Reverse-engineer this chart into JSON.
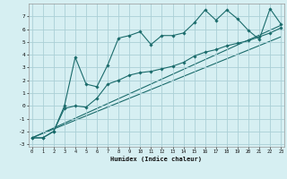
{
  "xlabel": "Humidex (Indice chaleur)",
  "bg_color": "#d6eff2",
  "grid_color": "#aacfd6",
  "line_color": "#1a6b6b",
  "x_ticks": [
    0,
    1,
    2,
    3,
    4,
    5,
    6,
    7,
    8,
    9,
    10,
    11,
    12,
    13,
    14,
    15,
    16,
    17,
    18,
    19,
    20,
    21,
    22,
    23
  ],
  "y_ticks": [
    -3,
    -2,
    -1,
    0,
    1,
    2,
    3,
    4,
    5,
    6,
    7
  ],
  "ylim": [
    -3.2,
    8.0
  ],
  "xlim": [
    -0.3,
    23.3
  ],
  "series1_x": [
    0,
    1,
    2,
    3,
    4,
    5,
    6,
    7,
    8,
    9,
    10,
    11,
    12,
    13,
    14,
    15,
    16,
    17,
    18,
    19,
    20,
    21,
    22,
    23
  ],
  "series1_y": [
    -2.5,
    -2.5,
    -2.0,
    0.0,
    3.8,
    1.7,
    1.5,
    3.2,
    5.3,
    5.5,
    5.8,
    4.8,
    5.5,
    5.5,
    5.7,
    6.5,
    7.5,
    6.7,
    7.5,
    6.8,
    5.9,
    5.2,
    7.6,
    6.4
  ],
  "series2_x": [
    0,
    1,
    2,
    3,
    4,
    5,
    6,
    7,
    8,
    9,
    10,
    11,
    12,
    13,
    14,
    15,
    16,
    17,
    18,
    19,
    20,
    21,
    22,
    23
  ],
  "series2_y": [
    -2.5,
    -2.5,
    -2.0,
    -0.2,
    0.0,
    -0.1,
    0.6,
    1.7,
    2.0,
    2.4,
    2.6,
    2.7,
    2.9,
    3.1,
    3.4,
    3.9,
    4.2,
    4.4,
    4.7,
    4.9,
    5.1,
    5.4,
    5.7,
    6.1
  ],
  "series3_x": [
    0,
    23
  ],
  "series3_y": [
    -2.5,
    6.3
  ],
  "series4_x": [
    0,
    23
  ],
  "series4_y": [
    -2.5,
    5.4
  ]
}
